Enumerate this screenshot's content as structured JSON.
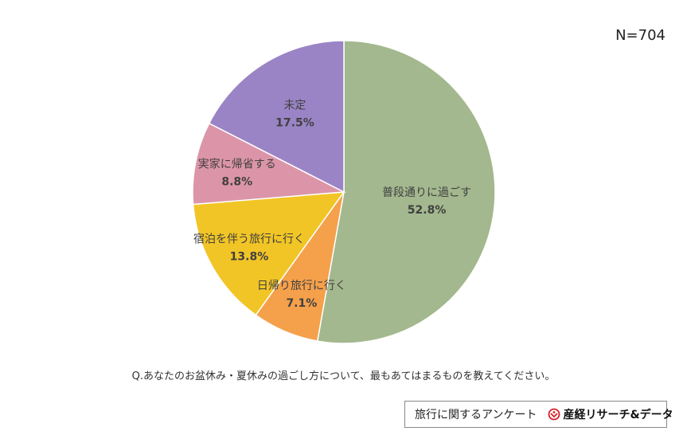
{
  "n_label": "N=704",
  "question": "Q.あなたのお盆休み・夏休みの過ごし方について、最もあてはまるものを教えてください。",
  "footer": {
    "survey_name": "旅行に関するアンケート",
    "logo_text": "産経リサーチ&データ"
  },
  "chart_data": {
    "type": "pie",
    "title": "",
    "slices": [
      {
        "label": "普段通りに過ごす",
        "value": 52.8,
        "value_label": "52.8%",
        "color": "#a3b88e"
      },
      {
        "label": "日帰り旅行に行く",
        "value": 7.1,
        "value_label": "7.1%",
        "color": "#f5a04b"
      },
      {
        "label": "宿泊を伴う旅行に行く",
        "value": 13.8,
        "value_label": "13.8%",
        "color": "#f2c526"
      },
      {
        "label": "実家に帰省する",
        "value": 8.8,
        "value_label": "8.8%",
        "color": "#dc95a8"
      },
      {
        "label": "未定",
        "value": 17.5,
        "value_label": "17.5%",
        "color": "#9a84c6"
      }
    ]
  }
}
